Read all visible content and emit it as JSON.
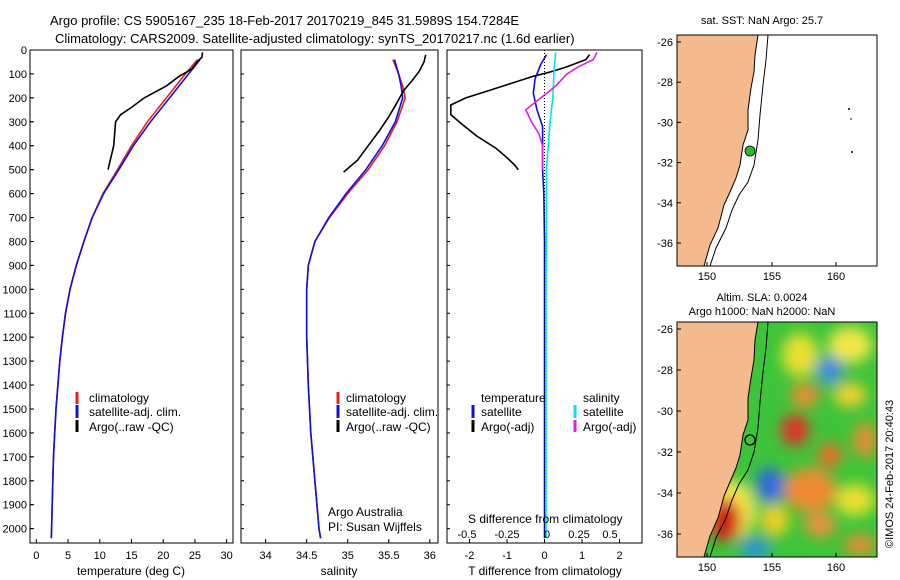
{
  "header": {
    "line1": "Argo profile: CS 5905167_235 18-Feb-2017 20170219_845 31.5989S 154.7284E",
    "line2": "Climatology: CARS2009. Satellite-adjusted climatology: synTS_20170217.nc (1.6d earlier)"
  },
  "colors": {
    "climatology": "#e8201c",
    "satellite": "#1010e0",
    "argo": "#000000",
    "salinity_sat": "#00e5ee",
    "salinity_argo": "#e020e0",
    "land": "#f5b98e"
  },
  "credits": {
    "institution": "Argo Australia",
    "pi": "PI: Susan Wijffels",
    "imos": "©IMOS 24-Feb-2017 20:40:43"
  },
  "chart_data": [
    {
      "type": "line",
      "panel": "temperature",
      "xlabel": "temperature (deg C)",
      "ylabel": "",
      "xlim": [
        -1,
        31
      ],
      "ylim": [
        2060,
        0
      ],
      "x_ticks": [
        0,
        5,
        10,
        15,
        20,
        25,
        30
      ],
      "y_ticks": [
        0,
        100,
        200,
        300,
        400,
        500,
        600,
        700,
        800,
        900,
        1000,
        1100,
        1200,
        1300,
        1400,
        1500,
        1600,
        1700,
        1800,
        1900,
        2000
      ],
      "legend": [
        "climatology",
        "satellite-adj. clim.",
        "Argo(..raw -QC)"
      ],
      "series": [
        {
          "name": "climatology",
          "points": [
            [
              25.4,
              40
            ],
            [
              23.5,
              100
            ],
            [
              20.5,
              200
            ],
            [
              17.5,
              300
            ],
            [
              15,
              400
            ],
            [
              12.8,
              500
            ],
            [
              10.5,
              600
            ],
            [
              8.8,
              700
            ],
            [
              7.5,
              800
            ],
            [
              6.3,
              900
            ],
            [
              5.3,
              1000
            ],
            [
              4.6,
              1100
            ],
            [
              4.1,
              1200
            ],
            [
              3.7,
              1300
            ],
            [
              3.4,
              1400
            ],
            [
              3.1,
              1500
            ],
            [
              2.9,
              1600
            ],
            [
              2.7,
              1700
            ],
            [
              2.6,
              1800
            ],
            [
              2.5,
              1900
            ],
            [
              2.4,
              2000
            ],
            [
              2.35,
              2040
            ]
          ]
        },
        {
          "name": "satellite-adj. clim.",
          "points": [
            [
              25.8,
              40
            ],
            [
              24,
              100
            ],
            [
              21,
              200
            ],
            [
              18,
              300
            ],
            [
              15.3,
              400
            ],
            [
              13,
              500
            ],
            [
              10.6,
              600
            ],
            [
              8.8,
              700
            ],
            [
              7.5,
              800
            ],
            [
              6.3,
              900
            ],
            [
              5.3,
              1000
            ],
            [
              4.6,
              1100
            ],
            [
              4.1,
              1200
            ],
            [
              3.7,
              1300
            ],
            [
              3.4,
              1400
            ],
            [
              3.1,
              1500
            ],
            [
              2.9,
              1600
            ],
            [
              2.7,
              1700
            ],
            [
              2.6,
              1800
            ],
            [
              2.5,
              1900
            ],
            [
              2.4,
              2000
            ],
            [
              2.35,
              2040
            ]
          ]
        },
        {
          "name": "Argo(..raw -QC)",
          "points": [
            [
              26.2,
              10
            ],
            [
              26.1,
              30
            ],
            [
              25.5,
              45
            ],
            [
              24.5,
              80
            ],
            [
              22.5,
              110
            ],
            [
              20.5,
              150
            ],
            [
              17,
              200
            ],
            [
              15,
              240
            ],
            [
              13.3,
              270
            ],
            [
              12.5,
              300
            ],
            [
              12.2,
              400
            ],
            [
              11.3,
              500
            ]
          ]
        }
      ]
    },
    {
      "type": "line",
      "panel": "salinity",
      "xlabel": "salinity",
      "ylabel": "",
      "xlim": [
        33.7,
        36.1
      ],
      "ylim": [
        2060,
        0
      ],
      "x_ticks": [
        34,
        34.5,
        35,
        35.5,
        36
      ],
      "legend": [
        "climatology",
        "satellite-adj. clim.",
        "Argo(..raw -QC)"
      ],
      "series": [
        {
          "name": "climatology",
          "points": [
            [
              35.55,
              40
            ],
            [
              35.62,
              100
            ],
            [
              35.67,
              150
            ],
            [
              35.7,
              200
            ],
            [
              35.6,
              300
            ],
            [
              35.45,
              400
            ],
            [
              35.25,
              500
            ],
            [
              35,
              600
            ],
            [
              34.78,
              700
            ],
            [
              34.6,
              800
            ],
            [
              34.52,
              900
            ],
            [
              34.5,
              1000
            ],
            [
              34.5,
              1200
            ],
            [
              34.52,
              1400
            ],
            [
              34.55,
              1600
            ],
            [
              34.6,
              1800
            ],
            [
              34.65,
              2000
            ],
            [
              34.67,
              2040
            ]
          ]
        },
        {
          "name": "satellite-adj. clim.",
          "points": [
            [
              35.57,
              40
            ],
            [
              35.62,
              100
            ],
            [
              35.65,
              150
            ],
            [
              35.67,
              200
            ],
            [
              35.58,
              300
            ],
            [
              35.42,
              400
            ],
            [
              35.22,
              500
            ],
            [
              34.98,
              600
            ],
            [
              34.77,
              700
            ],
            [
              34.6,
              800
            ],
            [
              34.52,
              900
            ],
            [
              34.5,
              1000
            ],
            [
              34.5,
              1200
            ],
            [
              34.52,
              1400
            ],
            [
              34.55,
              1600
            ],
            [
              34.6,
              1800
            ],
            [
              34.65,
              2000
            ],
            [
              34.67,
              2040
            ]
          ]
        },
        {
          "name": "Argo(..raw -QC)",
          "points": [
            [
              35.95,
              20
            ],
            [
              35.93,
              50
            ],
            [
              35.87,
              90
            ],
            [
              35.78,
              130
            ],
            [
              35.68,
              170
            ],
            [
              35.6,
              220
            ],
            [
              35.5,
              280
            ],
            [
              35.38,
              340
            ],
            [
              35.25,
              400
            ],
            [
              35.12,
              460
            ],
            [
              34.95,
              510
            ]
          ]
        }
      ]
    },
    {
      "type": "line",
      "panel": "difference",
      "xlabel": "T difference from climatology",
      "top_label": "S difference from climatology",
      "xlim": [
        -2.6,
        2.6
      ],
      "ylim": [
        2060,
        0
      ],
      "x_ticks": [
        -2,
        -1,
        0,
        1,
        2
      ],
      "s_ticks": [
        "-0.5",
        "-0.25",
        "0",
        "0.25",
        "0.5"
      ],
      "legend_left_title": "temperature",
      "legend_right_title": "salinity",
      "legend": [
        "satellite",
        "Argo(-adj)",
        "satellite",
        "Argo(-adj)"
      ],
      "series": [
        {
          "name": "satellite",
          "points": [
            [
              0.05,
              20
            ],
            [
              -0.1,
              60
            ],
            [
              -0.25,
              120
            ],
            [
              -0.3,
              180
            ],
            [
              -0.2,
              250
            ],
            [
              -0.05,
              320
            ],
            [
              -0.05,
              500
            ],
            [
              -0.02,
              600
            ],
            [
              0,
              800
            ],
            [
              0,
              1200
            ],
            [
              0,
              1600
            ],
            [
              0,
              2040
            ]
          ]
        },
        {
          "name": "Argo(-adj)",
          "points": [
            [
              1.2,
              20
            ],
            [
              1.1,
              40
            ],
            [
              0.6,
              70
            ],
            [
              0.2,
              90
            ],
            [
              -0.3,
              110
            ],
            [
              -0.9,
              140
            ],
            [
              -1.5,
              170
            ],
            [
              -2.1,
              200
            ],
            [
              -2.5,
              230
            ],
            [
              -2.5,
              270
            ],
            [
              -2.2,
              310
            ],
            [
              -1.8,
              360
            ],
            [
              -1.3,
              410
            ],
            [
              -1.0,
              450
            ],
            [
              -0.8,
              480
            ],
            [
              -0.7,
              500
            ]
          ]
        },
        {
          "name": "satellite",
          "points": [
            [
              0.3,
              10
            ],
            [
              0.28,
              40
            ],
            [
              0.25,
              100
            ],
            [
              0.22,
              200
            ],
            [
              0.15,
              300
            ],
            [
              0.1,
              400
            ],
            [
              0.05,
              500
            ],
            [
              0.05,
              700
            ],
            [
              0.04,
              1000
            ],
            [
              0.04,
              1500
            ],
            [
              0.04,
              2040
            ]
          ]
        },
        {
          "name": "Argo(-adj)",
          "points": [
            [
              1.4,
              10
            ],
            [
              1.3,
              40
            ],
            [
              0.9,
              70
            ],
            [
              0.6,
              100
            ],
            [
              0.3,
              150
            ],
            [
              -0.1,
              200
            ],
            [
              -0.5,
              250
            ],
            [
              -0.35,
              300
            ],
            [
              -0.15,
              350
            ],
            [
              -0.05,
              400
            ],
            [
              -0.05,
              500
            ]
          ]
        }
      ]
    }
  ],
  "maps": {
    "sst": {
      "title": "sat. SST: NaN Argo: 25.7",
      "x_ticks": [
        "150",
        "155",
        "160"
      ],
      "y_ticks": [
        "-26",
        "-28",
        "-30",
        "-32",
        "-34",
        "-36"
      ]
    },
    "sla": {
      "title1": "Altim. SLA: 0.0024",
      "title2": "Argo h1000: NaN h2000: NaN",
      "x_ticks": [
        "150",
        "155",
        "160"
      ],
      "y_ticks": [
        "-26",
        "-28",
        "-30",
        "-32",
        "-34",
        "-36"
      ]
    }
  }
}
